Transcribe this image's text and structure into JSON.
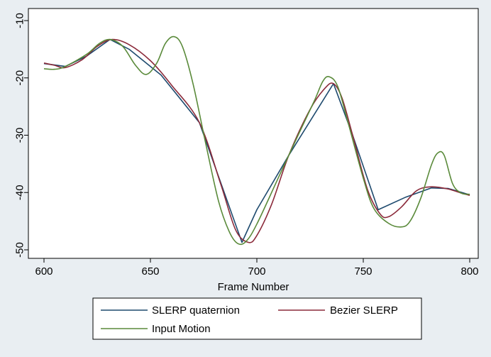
{
  "chart_data": {
    "type": "line",
    "title": "",
    "xlabel": "Frame Number",
    "ylabel": "",
    "xlim": [
      600,
      800
    ],
    "ylim": [
      -50,
      -10
    ],
    "xticks": [
      600,
      650,
      700,
      750,
      800
    ],
    "yticks": [
      -10,
      -20,
      -30,
      -40,
      -50
    ],
    "grid": false,
    "legend_position": "bottom",
    "series": [
      {
        "name": "SLERP quaternion",
        "color": "#1e4a6e",
        "points": [
          [
            600,
            -17.5
          ],
          [
            610,
            -18.0
          ],
          [
            620,
            -16.2
          ],
          [
            631,
            -13.3
          ],
          [
            640,
            -15.0
          ],
          [
            655,
            -19.5
          ],
          [
            673,
            -27.8
          ],
          [
            693,
            -48.7
          ],
          [
            700,
            -43.0
          ],
          [
            715,
            -33.5
          ],
          [
            736,
            -21.0
          ],
          [
            745,
            -30.0
          ],
          [
            757,
            -43.0
          ],
          [
            770,
            -40.8
          ],
          [
            782,
            -39.2
          ],
          [
            790,
            -39.3
          ],
          [
            800,
            -40.4
          ]
        ]
      },
      {
        "name": "Bezier SLERP",
        "color": "#8b2a3a",
        "points": [
          [
            600,
            -17.4
          ],
          [
            605,
            -17.8
          ],
          [
            610,
            -18.2
          ],
          [
            618,
            -16.8
          ],
          [
            625,
            -14.5
          ],
          [
            632,
            -13.3
          ],
          [
            640,
            -14.2
          ],
          [
            650,
            -17.0
          ],
          [
            660,
            -21.3
          ],
          [
            673,
            -27.8
          ],
          [
            683,
            -38.5
          ],
          [
            690,
            -46.5
          ],
          [
            696,
            -48.7
          ],
          [
            700,
            -47.5
          ],
          [
            707,
            -42.0
          ],
          [
            715,
            -33.5
          ],
          [
            725,
            -25.5
          ],
          [
            732,
            -21.8
          ],
          [
            736,
            -21.0
          ],
          [
            740,
            -23.5
          ],
          [
            745,
            -30.0
          ],
          [
            752,
            -39.5
          ],
          [
            758,
            -43.8
          ],
          [
            762,
            -44.2
          ],
          [
            768,
            -42.5
          ],
          [
            775,
            -39.7
          ],
          [
            782,
            -39.0
          ],
          [
            790,
            -39.4
          ],
          [
            796,
            -40.1
          ],
          [
            800,
            -40.5
          ]
        ]
      },
      {
        "name": "Input Motion",
        "color": "#5a8a3a",
        "points": [
          [
            600,
            -18.4
          ],
          [
            605,
            -18.5
          ],
          [
            610,
            -18.0
          ],
          [
            620,
            -15.9
          ],
          [
            626,
            -14.0
          ],
          [
            631,
            -13.3
          ],
          [
            637,
            -14.5
          ],
          [
            643,
            -17.8
          ],
          [
            648,
            -19.4
          ],
          [
            653,
            -17.4
          ],
          [
            657,
            -14.0
          ],
          [
            661,
            -12.8
          ],
          [
            665,
            -14.5
          ],
          [
            670,
            -21.0
          ],
          [
            676,
            -31.5
          ],
          [
            682,
            -41.5
          ],
          [
            687,
            -46.8
          ],
          [
            691,
            -48.9
          ],
          [
            695,
            -48.5
          ],
          [
            700,
            -45.5
          ],
          [
            710,
            -37.5
          ],
          [
            720,
            -29.5
          ],
          [
            727,
            -24.0
          ],
          [
            731,
            -20.6
          ],
          [
            734,
            -19.8
          ],
          [
            738,
            -21.5
          ],
          [
            743,
            -28.0
          ],
          [
            750,
            -37.5
          ],
          [
            755,
            -42.8
          ],
          [
            762,
            -45.4
          ],
          [
            768,
            -46.0
          ],
          [
            772,
            -45.0
          ],
          [
            777,
            -41.0
          ],
          [
            782,
            -35.2
          ],
          [
            785,
            -33.1
          ],
          [
            788,
            -33.5
          ],
          [
            792,
            -38.5
          ],
          [
            796,
            -40.1
          ],
          [
            800,
            -40.3
          ]
        ]
      }
    ]
  }
}
